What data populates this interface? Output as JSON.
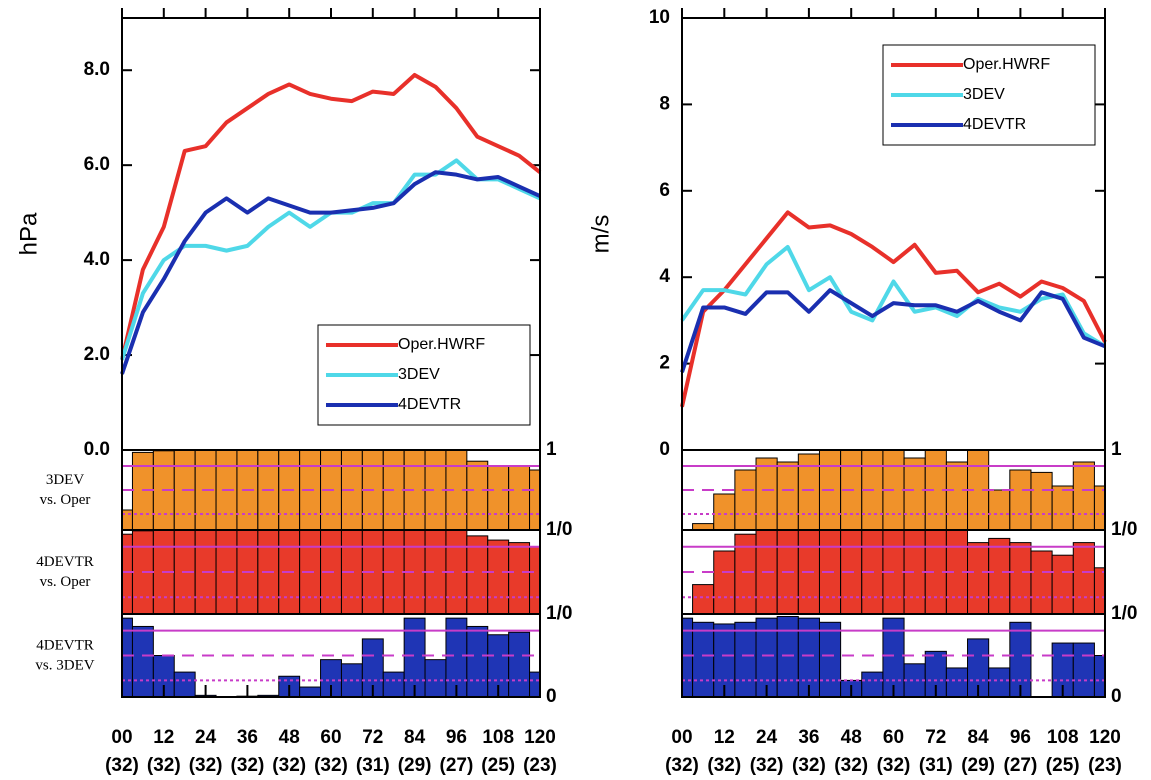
{
  "chart_data": [
    {
      "type": "line",
      "ylabel": "hPa",
      "x": [
        0,
        6,
        12,
        18,
        24,
        30,
        36,
        42,
        48,
        54,
        60,
        66,
        72,
        78,
        84,
        90,
        96,
        102,
        108,
        114,
        120
      ],
      "xlim": [
        0,
        120
      ],
      "xticks": [
        {
          "value": 0,
          "label": "00"
        },
        12,
        24,
        36,
        48,
        60,
        72,
        84,
        96,
        108,
        120
      ],
      "sample_sizes": [
        "(32)",
        "(32)",
        "(32)",
        "(32)",
        "(32)",
        "(32)",
        "(31)",
        "(29)",
        "(27)",
        "(25)",
        "(23)"
      ],
      "ylim": [
        0,
        9.1
      ],
      "yticks": [
        {
          "value": 0,
          "label": "0.0"
        },
        {
          "value": 2,
          "label": "2.0"
        },
        {
          "value": 4,
          "label": "4.0"
        },
        {
          "value": 6,
          "label": "6.0"
        },
        {
          "value": 8,
          "label": "8.0"
        }
      ],
      "legend": "lower right",
      "series": [
        {
          "name": "Oper.HWRF",
          "color": "#e8302a",
          "values": [
            1.9,
            3.8,
            4.7,
            6.3,
            6.4,
            6.9,
            7.2,
            7.5,
            7.7,
            7.5,
            7.4,
            7.35,
            7.55,
            7.5,
            7.9,
            7.65,
            7.2,
            6.6,
            6.4,
            6.2,
            5.85
          ]
        },
        {
          "name": "3DEV",
          "color": "#4fd8e8",
          "values": [
            1.9,
            3.3,
            4.0,
            4.3,
            4.3,
            4.2,
            4.3,
            4.7,
            5.0,
            4.7,
            5.0,
            5.0,
            5.2,
            5.2,
            5.8,
            5.8,
            6.1,
            5.7,
            5.7,
            5.5,
            5.3
          ]
        },
        {
          "name": "4DEVTR",
          "color": "#1a2fb0",
          "values": [
            1.6,
            2.9,
            3.6,
            4.4,
            5.0,
            5.3,
            5.0,
            5.3,
            5.15,
            5.0,
            5.0,
            5.05,
            5.1,
            5.2,
            5.6,
            5.85,
            5.8,
            5.7,
            5.75,
            5.55,
            5.35
          ]
        }
      ],
      "strip_tick_labels": [
        "1",
        "1/0",
        "1/0",
        "0"
      ],
      "ref_lines": [
        0.8,
        0.5,
        0.2
      ],
      "strips": [
        {
          "label": [
            "3DEV",
            "vs. Oper"
          ],
          "color": "#f0922a",
          "values": [
            0.25,
            0.97,
            0.99,
            1,
            1,
            1,
            1,
            1,
            1,
            1,
            1,
            1,
            1,
            1,
            1,
            1,
            1,
            0.86,
            0.8,
            0.8,
            0.75
          ]
        },
        {
          "label": [
            "4DEVTR",
            "vs. Oper"
          ],
          "color": "#e83a2a",
          "values": [
            0.95,
            0.99,
            1,
            1,
            1,
            1,
            1,
            1,
            1,
            1,
            1,
            1,
            1,
            1,
            1,
            1,
            1,
            0.93,
            0.88,
            0.85,
            0.8
          ]
        },
        {
          "label": [
            "4DEVTR",
            "vs. 3DEV"
          ],
          "color": "#1f35b5",
          "values": [
            0.95,
            0.85,
            0.5,
            0.3,
            0.02,
            0,
            0.01,
            0.02,
            0.25,
            0.12,
            0.45,
            0.4,
            0.7,
            0.3,
            0.95,
            0.45,
            0.95,
            0.85,
            0.75,
            0.78,
            0.3
          ]
        }
      ]
    },
    {
      "type": "line",
      "ylabel": "m/s",
      "x": [
        0,
        6,
        12,
        18,
        24,
        30,
        36,
        42,
        48,
        54,
        60,
        66,
        72,
        78,
        84,
        90,
        96,
        102,
        108,
        114,
        120
      ],
      "xlim": [
        0,
        120
      ],
      "xticks": [
        {
          "value": 0,
          "label": "00"
        },
        12,
        24,
        36,
        48,
        60,
        72,
        84,
        96,
        108,
        120
      ],
      "sample_sizes": [
        "(32)",
        "(32)",
        "(32)",
        "(32)",
        "(32)",
        "(32)",
        "(31)",
        "(29)",
        "(27)",
        "(25)",
        "(23)"
      ],
      "ylim": [
        0,
        10
      ],
      "yticks": [
        0,
        2,
        4,
        6,
        8,
        10
      ],
      "legend": "upper right",
      "series": [
        {
          "name": "Oper.HWRF",
          "color": "#e8302a",
          "values": [
            1.0,
            3.2,
            3.7,
            4.3,
            4.9,
            5.5,
            5.15,
            5.2,
            5.0,
            4.7,
            4.35,
            4.75,
            4.1,
            4.15,
            3.65,
            3.85,
            3.55,
            3.9,
            3.75,
            3.45,
            2.5
          ]
        },
        {
          "name": "3DEV",
          "color": "#4fd8e8",
          "values": [
            3.0,
            3.7,
            3.7,
            3.6,
            4.3,
            4.7,
            3.7,
            4.0,
            3.2,
            3.0,
            3.9,
            3.2,
            3.3,
            3.1,
            3.5,
            3.3,
            3.2,
            3.5,
            3.6,
            2.7,
            2.4
          ]
        },
        {
          "name": "4DEVTR",
          "color": "#1a2fb0",
          "values": [
            1.8,
            3.3,
            3.3,
            3.15,
            3.65,
            3.65,
            3.2,
            3.7,
            3.4,
            3.1,
            3.4,
            3.35,
            3.35,
            3.2,
            3.45,
            3.2,
            3.0,
            3.65,
            3.5,
            2.6,
            2.4
          ]
        }
      ],
      "strip_tick_labels": [
        "1",
        "1/0",
        "1/0",
        "0"
      ],
      "ref_lines": [
        0.8,
        0.5,
        0.2
      ],
      "strips": [
        {
          "color": "#f0922a",
          "values": [
            0,
            0.08,
            0.45,
            0.75,
            0.9,
            0.85,
            0.95,
            1,
            1,
            1,
            1,
            0.9,
            1,
            0.85,
            1,
            0.5,
            0.75,
            0.72,
            0.55,
            0.85,
            0.55
          ]
        },
        {
          "color": "#e83a2a",
          "values": [
            0,
            0.35,
            0.75,
            0.95,
            1,
            1,
            1,
            1,
            1,
            1,
            1,
            1,
            1,
            1,
            0.85,
            0.9,
            0.85,
            0.75,
            0.7,
            0.85,
            0.55
          ]
        },
        {
          "color": "#1f35b5",
          "values": [
            0.95,
            0.9,
            0.88,
            0.9,
            0.95,
            0.97,
            0.95,
            0.9,
            0.2,
            0.3,
            0.95,
            0.4,
            0.55,
            0.35,
            0.7,
            0.35,
            0.9,
            0,
            0.65,
            0.65,
            0.5
          ]
        }
      ]
    }
  ]
}
